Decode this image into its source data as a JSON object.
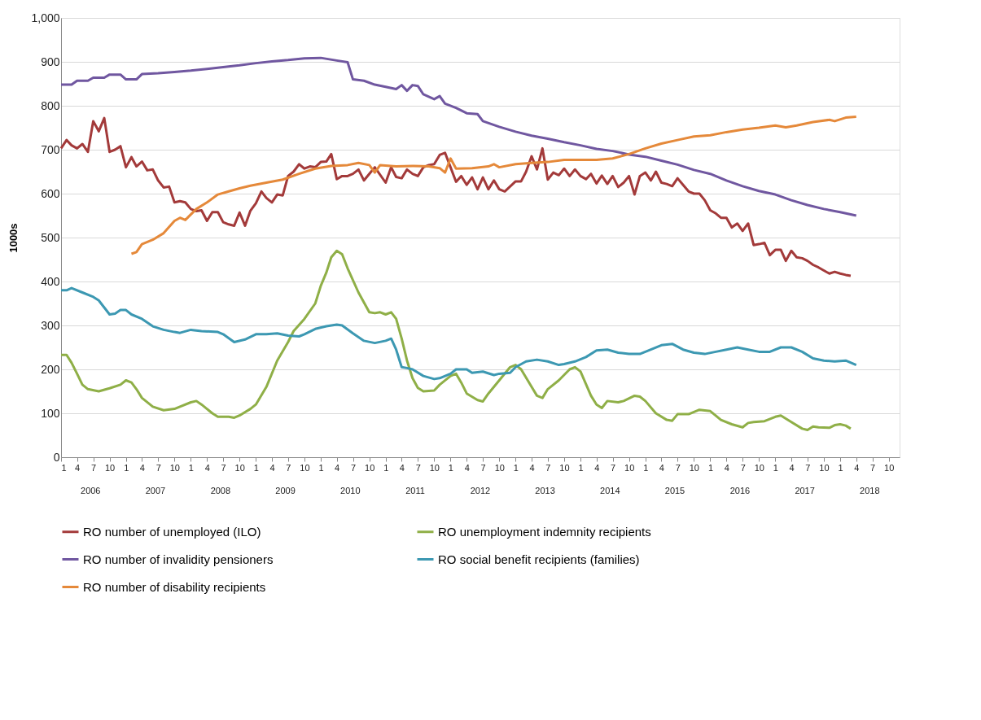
{
  "chart_data": {
    "type": "line",
    "ylabel": "1000s",
    "ylim": [
      0,
      1000
    ],
    "yticks": [
      0,
      100,
      200,
      300,
      400,
      500,
      600,
      700,
      800,
      900,
      {
        "value": 1000,
        "label": "1,000"
      }
    ],
    "xlim": [
      "2006-01",
      "2018-12"
    ],
    "xticks": [
      {
        "value": "2006-01",
        "label": "1"
      },
      {
        "value": "2006-04",
        "label": "4"
      },
      {
        "value": "2006-07",
        "label": "7"
      },
      {
        "value": "2006-10",
        "label": "10"
      },
      {
        "value": "2007-01",
        "label": "1"
      },
      {
        "value": "2007-04",
        "label": "4"
      },
      {
        "value": "2007-07",
        "label": "7"
      },
      {
        "value": "2007-10",
        "label": "10"
      },
      {
        "value": "2008-01",
        "label": "1"
      },
      {
        "value": "2008-04",
        "label": "4"
      },
      {
        "value": "2008-07",
        "label": "7"
      },
      {
        "value": "2008-10",
        "label": "10"
      },
      {
        "value": "2009-01",
        "label": "1"
      },
      {
        "value": "2009-04",
        "label": "4"
      },
      {
        "value": "2009-07",
        "label": "7"
      },
      {
        "value": "2009-10",
        "label": "10"
      },
      {
        "value": "2010-01",
        "label": "1"
      },
      {
        "value": "2010-04",
        "label": "4"
      },
      {
        "value": "2010-07",
        "label": "7"
      },
      {
        "value": "2010-10",
        "label": "10"
      },
      {
        "value": "2011-01",
        "label": "1"
      },
      {
        "value": "2011-04",
        "label": "4"
      },
      {
        "value": "2011-07",
        "label": "7"
      },
      {
        "value": "2011-10",
        "label": "10"
      },
      {
        "value": "2012-01",
        "label": "1"
      },
      {
        "value": "2012-04",
        "label": "4"
      },
      {
        "value": "2012-07",
        "label": "7"
      },
      {
        "value": "2012-10",
        "label": "10"
      },
      {
        "value": "2013-01",
        "label": "1"
      },
      {
        "value": "2013-04",
        "label": "4"
      },
      {
        "value": "2013-07",
        "label": "7"
      },
      {
        "value": "2013-10",
        "label": "10"
      },
      {
        "value": "2014-01",
        "label": "1"
      },
      {
        "value": "2014-04",
        "label": "4"
      },
      {
        "value": "2014-07",
        "label": "7"
      },
      {
        "value": "2014-10",
        "label": "10"
      },
      {
        "value": "2015-01",
        "label": "1"
      },
      {
        "value": "2015-04",
        "label": "4"
      },
      {
        "value": "2015-07",
        "label": "7"
      },
      {
        "value": "2015-10",
        "label": "10"
      },
      {
        "value": "2016-01",
        "label": "1"
      },
      {
        "value": "2016-04",
        "label": "4"
      },
      {
        "value": "2016-07",
        "label": "7"
      },
      {
        "value": "2016-10",
        "label": "10"
      },
      {
        "value": "2017-01",
        "label": "1"
      },
      {
        "value": "2017-04",
        "label": "4"
      },
      {
        "value": "2017-07",
        "label": "7"
      },
      {
        "value": "2017-10",
        "label": "10"
      },
      {
        "value": "2018-01",
        "label": "1"
      },
      {
        "value": "2018-04",
        "label": "4"
      },
      {
        "value": "2018-07",
        "label": "7"
      },
      {
        "value": "2018-10",
        "label": "10"
      }
    ],
    "x2lim": [
      "2006-01",
      "2018-12"
    ],
    "x2ticks": [
      {
        "value": "2006-06-16",
        "label": "2006"
      },
      {
        "value": "2007-06-16",
        "label": "2007"
      },
      {
        "value": "2008-06-16",
        "label": "2008"
      },
      {
        "value": "2009-06-16",
        "label": "2009"
      },
      {
        "value": "2010-06-16",
        "label": "2010"
      },
      {
        "value": "2011-06-16",
        "label": "2011"
      },
      {
        "value": "2012-06-16",
        "label": "2012"
      },
      {
        "value": "2013-06-16",
        "label": "2013"
      },
      {
        "value": "2014-06-16",
        "label": "2014"
      },
      {
        "value": "2015-06-16",
        "label": "2015"
      },
      {
        "value": "2016-06-16",
        "label": "2016"
      },
      {
        "value": "2017-06-16",
        "label": "2017"
      },
      {
        "value": "2018-06-16",
        "label": "2018"
      }
    ],
    "grid": "y",
    "legend": "bottom",
    "marker": "none",
    "line_style": "solid",
    "series": [
      {
        "name": "RO number of unemployed (ILO)",
        "color": "#a33a3a",
        "x": [
          "2006-01",
          "2006-02",
          "2006-03",
          "2006-04",
          "2006-05",
          "2006-06",
          "2006-07",
          "2006-08",
          "2006-09",
          "2006-10",
          "2006-11",
          "2006-12",
          "2007-01",
          "2007-02",
          "2007-03",
          "2007-04",
          "2007-05",
          "2007-06",
          "2007-07",
          "2007-08",
          "2007-09",
          "2007-10",
          "2007-11",
          "2007-12",
          "2008-01",
          "2008-02",
          "2008-03",
          "2008-04",
          "2008-05",
          "2008-06",
          "2008-07",
          "2008-08",
          "2008-09",
          "2008-10",
          "2008-11",
          "2008-12",
          "2009-01",
          "2009-02",
          "2009-03",
          "2009-04",
          "2009-05",
          "2009-06",
          "2009-07",
          "2009-08",
          "2009-09",
          "2009-10",
          "2009-11",
          "2009-12",
          "2010-01",
          "2010-02",
          "2010-03",
          "2010-04",
          "2010-05",
          "2010-06",
          "2010-07",
          "2010-08",
          "2010-09",
          "2010-10",
          "2010-11",
          "2011-01",
          "2011-02",
          "2011-03",
          "2011-04",
          "2011-05",
          "2011-06",
          "2011-07",
          "2011-08",
          "2011-09",
          "2011-10",
          "2011-11",
          "2011-12",
          "2012-01",
          "2012-02",
          "2012-03",
          "2012-04",
          "2012-05",
          "2012-06",
          "2012-07",
          "2012-08",
          "2012-09",
          "2012-10",
          "2012-11",
          "2013-01",
          "2013-02",
          "2013-03",
          "2013-04",
          "2013-05",
          "2013-06",
          "2013-07",
          "2013-08",
          "2013-09",
          "2013-10",
          "2013-11",
          "2013-12",
          "2014-01",
          "2014-02",
          "2014-03",
          "2014-04",
          "2014-05",
          "2014-06",
          "2014-07",
          "2014-08",
          "2014-09",
          "2014-10",
          "2014-11",
          "2014-12",
          "2015-01",
          "2015-02",
          "2015-03",
          "2015-04",
          "2015-05",
          "2015-06",
          "2015-07",
          "2015-08",
          "2015-09",
          "2015-10",
          "2015-11",
          "2015-12",
          "2016-01",
          "2016-02",
          "2016-03",
          "2016-04",
          "2016-05",
          "2016-06",
          "2016-07",
          "2016-08",
          "2016-09",
          "2016-10",
          "2016-11",
          "2016-12",
          "2017-01",
          "2017-02",
          "2017-03",
          "2017-04",
          "2017-05",
          "2017-06",
          "2017-07",
          "2017-08",
          "2017-09",
          "2017-10",
          "2017-11",
          "2017-12",
          "2018-01",
          "2018-02",
          "2018-03"
        ],
        "values": [
          703,
          722,
          710,
          703,
          713,
          695,
          765,
          742,
          772,
          695,
          700,
          708,
          660,
          683,
          662,
          673,
          653,
          655,
          630,
          614,
          616,
          580,
          583,
          580,
          565,
          560,
          562,
          538,
          558,
          558,
          535,
          530,
          527,
          557,
          527,
          561,
          578,
          605,
          590,
          580,
          598,
          596,
          640,
          650,
          667,
          657,
          662,
          660,
          672,
          673,
          690,
          633,
          640,
          640,
          645,
          655,
          630,
          645,
          660,
          625,
          660,
          638,
          635,
          655,
          645,
          640,
          660,
          665,
          667,
          688,
          693,
          660,
          627,
          640,
          620,
          637,
          610,
          637,
          610,
          630,
          610,
          605,
          628,
          628,
          650,
          685,
          655,
          703,
          632,
          648,
          642,
          657,
          640,
          655,
          640,
          633,
          645,
          623,
          641,
          622,
          640,
          615,
          625,
          640,
          598,
          640,
          648,
          630,
          650,
          625,
          622,
          617,
          635,
          620,
          605,
          600,
          600,
          585,
          562,
          555,
          545,
          545,
          523,
          532,
          515,
          532,
          483,
          485,
          488,
          460,
          472,
          472,
          447,
          470,
          455,
          453,
          447,
          438,
          432,
          425,
          418,
          422,
          418,
          415,
          413
        ]
      },
      {
        "name": "RO unemployment indemnity recipients",
        "color": "#8faf47",
        "x": [
          "2006-01",
          "2006-02",
          "2006-03",
          "2006-04",
          "2006-05",
          "2006-06",
          "2006-08",
          "2006-10",
          "2006-12",
          "2007-01",
          "2007-02",
          "2007-03",
          "2007-04",
          "2007-06",
          "2007-08",
          "2007-10",
          "2007-11",
          "2008-01",
          "2008-02",
          "2008-03",
          "2008-05",
          "2008-06",
          "2008-08",
          "2008-09",
          "2008-10",
          "2008-12",
          "2009-01",
          "2009-03",
          "2009-05",
          "2009-07",
          "2009-08",
          "2009-10",
          "2009-12",
          "2010-01",
          "2010-02",
          "2010-03",
          "2010-04",
          "2010-05",
          "2010-06",
          "2010-08",
          "2010-10",
          "2010-11",
          "2010-12",
          "2011-01",
          "2011-02",
          "2011-03",
          "2011-04",
          "2011-05",
          "2011-06",
          "2011-07",
          "2011-08",
          "2011-10",
          "2011-11",
          "2012-01",
          "2012-02",
          "2012-03",
          "2012-04",
          "2012-06",
          "2012-07",
          "2012-08",
          "2012-10",
          "2012-12",
          "2013-01",
          "2013-02",
          "2013-04",
          "2013-05",
          "2013-06",
          "2013-07",
          "2013-09",
          "2013-11",
          "2013-12",
          "2014-01",
          "2014-03",
          "2014-04",
          "2014-05",
          "2014-06",
          "2014-08",
          "2014-09",
          "2014-11",
          "2014-12",
          "2015-01",
          "2015-03",
          "2015-05",
          "2015-06",
          "2015-07",
          "2015-09",
          "2015-11",
          "2016-01",
          "2016-03",
          "2016-05",
          "2016-07",
          "2016-08",
          "2016-09",
          "2016-11",
          "2017-01",
          "2017-02",
          "2017-04",
          "2017-06",
          "2017-07",
          "2017-08",
          "2017-09",
          "2017-11",
          "2017-12",
          "2018-01",
          "2018-02",
          "2018-03"
        ],
        "values": [
          233,
          233,
          215,
          190,
          165,
          155,
          150,
          157,
          165,
          175,
          170,
          155,
          135,
          115,
          107,
          110,
          115,
          125,
          128,
          120,
          100,
          92,
          92,
          90,
          95,
          110,
          120,
          160,
          220,
          262,
          287,
          315,
          350,
          390,
          420,
          455,
          470,
          462,
          430,
          375,
          330,
          328,
          330,
          325,
          330,
          315,
          270,
          220,
          180,
          158,
          150,
          152,
          165,
          185,
          190,
          170,
          145,
          130,
          127,
          145,
          175,
          205,
          210,
          200,
          160,
          140,
          135,
          155,
          175,
          200,
          205,
          195,
          140,
          120,
          112,
          128,
          125,
          128,
          140,
          138,
          128,
          100,
          85,
          83,
          98,
          98,
          108,
          105,
          85,
          75,
          68,
          78,
          80,
          82,
          92,
          95,
          80,
          65,
          62,
          70,
          68,
          67,
          73,
          75,
          72,
          65
        ]
      },
      {
        "name": "RO number of invalidity pensioners",
        "color": "#7057a0",
        "x": [
          "2006-01",
          "2006-03",
          "2006-04",
          "2006-06",
          "2006-07",
          "2006-09",
          "2006-10",
          "2006-12",
          "2007-01",
          "2007-03",
          "2007-04",
          "2007-07",
          "2007-10",
          "2008-01",
          "2008-04",
          "2008-07",
          "2008-10",
          "2009-01",
          "2009-04",
          "2009-07",
          "2009-10",
          "2010-01",
          "2010-04",
          "2010-06",
          "2010-07",
          "2010-09",
          "2010-11",
          "2011-01",
          "2011-03",
          "2011-04",
          "2011-05",
          "2011-06",
          "2011-07",
          "2011-08",
          "2011-10",
          "2011-11",
          "2011-12",
          "2012-02",
          "2012-04",
          "2012-06",
          "2012-07",
          "2012-10",
          "2013-01",
          "2013-04",
          "2013-07",
          "2013-10",
          "2014-01",
          "2014-04",
          "2014-07",
          "2014-10",
          "2015-01",
          "2015-04",
          "2015-07",
          "2015-10",
          "2016-01",
          "2016-04",
          "2016-07",
          "2016-10",
          "2017-01",
          "2017-04",
          "2017-07",
          "2017-10",
          "2018-01",
          "2018-04"
        ],
        "values": [
          848,
          848,
          857,
          857,
          864,
          864,
          871,
          871,
          860,
          860,
          872,
          874,
          877,
          880,
          884,
          888,
          892,
          897,
          901,
          904,
          908,
          909,
          903,
          899,
          860,
          857,
          848,
          843,
          838,
          847,
          834,
          847,
          845,
          826,
          815,
          822,
          805,
          795,
          783,
          781,
          765,
          752,
          741,
          732,
          725,
          717,
          710,
          702,
          697,
          689,
          684,
          675,
          666,
          654,
          645,
          630,
          617,
          606,
          598,
          585,
          574,
          565,
          558,
          550
        ]
      },
      {
        "name": "RO social benefit recipients (families)",
        "color": "#3c98b2",
        "x": [
          "2006-01",
          "2006-02",
          "2006-03",
          "2006-05",
          "2006-07",
          "2006-08",
          "2006-10",
          "2006-11",
          "2006-12",
          "2007-01",
          "2007-02",
          "2007-04",
          "2007-06",
          "2007-08",
          "2007-10",
          "2007-11",
          "2008-01",
          "2008-03",
          "2008-06",
          "2008-07",
          "2008-09",
          "2008-11",
          "2009-01",
          "2009-03",
          "2009-05",
          "2009-07",
          "2009-09",
          "2009-10",
          "2009-12",
          "2010-02",
          "2010-04",
          "2010-05",
          "2010-07",
          "2010-09",
          "2010-11",
          "2011-01",
          "2011-02",
          "2011-03",
          "2011-04",
          "2011-05",
          "2011-06",
          "2011-08",
          "2011-10",
          "2011-11",
          "2012-01",
          "2012-02",
          "2012-04",
          "2012-05",
          "2012-07",
          "2012-09",
          "2012-10",
          "2012-12",
          "2013-01",
          "2013-03",
          "2013-05",
          "2013-07",
          "2013-09",
          "2013-10",
          "2013-12",
          "2014-02",
          "2014-04",
          "2014-06",
          "2014-08",
          "2014-10",
          "2014-12",
          "2015-02",
          "2015-04",
          "2015-06",
          "2015-08",
          "2015-10",
          "2015-12",
          "2016-02",
          "2016-04",
          "2016-06",
          "2016-08",
          "2016-10",
          "2016-12",
          "2017-02",
          "2017-04",
          "2017-06",
          "2017-08",
          "2017-10",
          "2017-12",
          "2018-02",
          "2018-04"
        ],
        "values": [
          380,
          380,
          385,
          375,
          365,
          357,
          325,
          327,
          335,
          335,
          325,
          315,
          298,
          290,
          285,
          283,
          290,
          287,
          285,
          280,
          262,
          268,
          280,
          280,
          282,
          277,
          275,
          280,
          292,
          298,
          302,
          300,
          282,
          265,
          260,
          265,
          270,
          245,
          205,
          203,
          200,
          185,
          178,
          180,
          190,
          200,
          200,
          192,
          195,
          187,
          190,
          192,
          205,
          218,
          222,
          218,
          210,
          212,
          218,
          228,
          243,
          245,
          238,
          235,
          235,
          245,
          255,
          258,
          245,
          238,
          235,
          240,
          245,
          250,
          245,
          240,
          240,
          250,
          250,
          240,
          225,
          220,
          218,
          220,
          210
        ]
      },
      {
        "name": "RO number of disability recipients",
        "color": "#e5893a",
        "x": [
          "2007-02",
          "2007-03",
          "2007-04",
          "2007-06",
          "2007-08",
          "2007-10",
          "2007-11",
          "2007-12",
          "2008-02",
          "2008-04",
          "2008-06",
          "2008-08",
          "2008-10",
          "2008-12",
          "2009-03",
          "2009-06",
          "2009-09",
          "2009-12",
          "2010-03",
          "2010-06",
          "2010-08",
          "2010-10",
          "2010-11",
          "2010-12",
          "2011-03",
          "2011-06",
          "2011-09",
          "2011-11",
          "2011-12",
          "2012-01",
          "2012-02",
          "2012-05",
          "2012-08",
          "2012-09",
          "2012-10",
          "2013-01",
          "2013-04",
          "2013-07",
          "2013-10",
          "2014-01",
          "2014-04",
          "2014-07",
          "2014-10",
          "2015-01",
          "2015-04",
          "2015-07",
          "2015-10",
          "2016-01",
          "2016-04",
          "2016-07",
          "2016-10",
          "2017-01",
          "2017-03",
          "2017-05",
          "2017-08",
          "2017-11",
          "2017-12",
          "2018-02",
          "2018-04"
        ],
        "values": [
          463,
          467,
          485,
          495,
          510,
          538,
          545,
          540,
          565,
          580,
          598,
          605,
          612,
          618,
          625,
          632,
          645,
          657,
          663,
          665,
          670,
          665,
          648,
          665,
          662,
          663,
          662,
          658,
          648,
          680,
          657,
          658,
          662,
          667,
          660,
          667,
          670,
          672,
          677,
          677,
          677,
          680,
          690,
          703,
          714,
          722,
          730,
          733,
          740,
          746,
          750,
          755,
          751,
          755,
          763,
          768,
          765,
          773,
          775
        ]
      }
    ]
  }
}
